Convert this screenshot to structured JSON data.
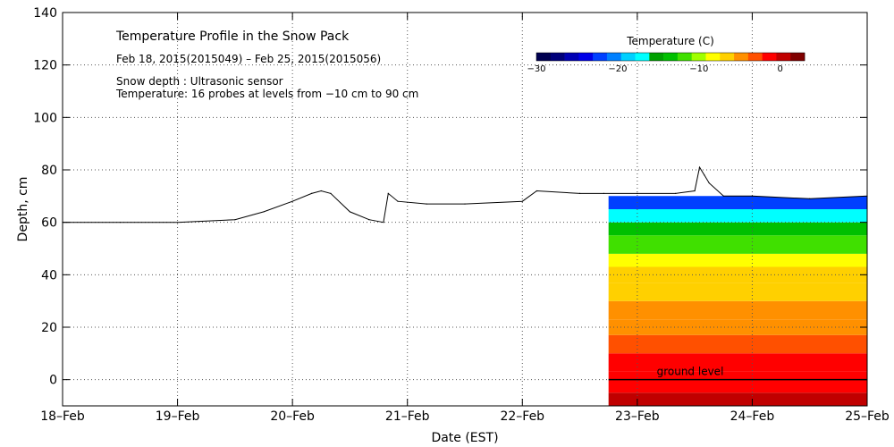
{
  "chart_data": {
    "type": "area",
    "title": "Temperature Profile in the Snow Pack",
    "subtitle": "Feb 18, 2015(2015049) – Feb 25, 2015(2015056)",
    "annotations": [
      "Snow depth : Ultrasonic sensor",
      "Temperature: 16 probes at levels from −10 cm to 90 cm"
    ],
    "xlabel": "Date (EST)",
    "ylabel": "Depth, cm",
    "xlim": [
      "2015-02-18",
      "2015-02-25"
    ],
    "ylim": [
      -10,
      140
    ],
    "x_ticks": [
      "18–Feb",
      "19–Feb",
      "20–Feb",
      "21–Feb",
      "22–Feb",
      "23–Feb",
      "24–Feb",
      "25–Feb"
    ],
    "y_ticks": [
      0,
      20,
      40,
      60,
      80,
      100,
      120,
      140
    ],
    "grid": true,
    "ground_level": {
      "label": "ground level",
      "depth": 0
    },
    "colorbar": {
      "title": "Temperature (C)",
      "range": [
        -30,
        3
      ],
      "tick_values": [
        -30,
        -20,
        -10,
        0
      ],
      "tick_labels": [
        "−30",
        "−20",
        "−10",
        "0"
      ],
      "colors": [
        "#000050",
        "#00007a",
        "#0000b4",
        "#0000e8",
        "#0040ff",
        "#0080ff",
        "#00d0ff",
        "#00ffff",
        "#00a000",
        "#00c000",
        "#40e000",
        "#a0ff00",
        "#ffff00",
        "#ffd000",
        "#ff9000",
        "#ff5000",
        "#ff0000",
        "#c00000",
        "#800000"
      ]
    },
    "series": [
      {
        "name": "Snow depth",
        "x": [
          "2015-02-18T00:00",
          "2015-02-18T12:00",
          "2015-02-19T00:00",
          "2015-02-19T12:00",
          "2015-02-19T18:00",
          "2015-02-20T00:00",
          "2015-02-20T04:00",
          "2015-02-20T06:00",
          "2015-02-20T08:00",
          "2015-02-20T12:00",
          "2015-02-20T16:00",
          "2015-02-20T19:00",
          "2015-02-20T20:00",
          "2015-02-20T22:00",
          "2015-02-21T04:00",
          "2015-02-21T12:00",
          "2015-02-22T00:00",
          "2015-02-22T03:00",
          "2015-02-22T12:00",
          "2015-02-22T17:00",
          "2015-02-23T00:00",
          "2015-02-23T08:00",
          "2015-02-23T12:00",
          "2015-02-23T13:00",
          "2015-02-23T14:00",
          "2015-02-23T15:00",
          "2015-02-23T18:00",
          "2015-02-24T00:00",
          "2015-02-24T12:00",
          "2015-02-25T00:00"
        ],
        "y": [
          60,
          60,
          60,
          61,
          64,
          68,
          71,
          72,
          71,
          64,
          61,
          60,
          71,
          68,
          67,
          67,
          68,
          72,
          71,
          71,
          71,
          71,
          72,
          81,
          78,
          75,
          70,
          70,
          69,
          70
        ]
      }
    ],
    "temperature_profile": {
      "start": "2015-02-22T18:00",
      "end": "2015-02-25T00:00",
      "layers": [
        {
          "from": -10,
          "to": -5,
          "temp_c": 1
        },
        {
          "from": -5,
          "to": 3,
          "temp_c": -1
        },
        {
          "from": 3,
          "to": 10,
          "temp_c": -2
        },
        {
          "from": 10,
          "to": 17,
          "temp_c": -3
        },
        {
          "from": 17,
          "to": 23,
          "temp_c": -4
        },
        {
          "from": 23,
          "to": 30,
          "temp_c": -5
        },
        {
          "from": 30,
          "to": 37,
          "temp_c": -6
        },
        {
          "from": 37,
          "to": 43,
          "temp_c": -7
        },
        {
          "from": 43,
          "to": 48,
          "temp_c": -9
        },
        {
          "from": 48,
          "to": 55,
          "temp_c": -11
        },
        {
          "from": 55,
          "to": 60,
          "temp_c": -14
        },
        {
          "from": 60,
          "to": 65,
          "temp_c": -17
        },
        {
          "from": 65,
          "to": 70,
          "temp_c": -22
        }
      ]
    }
  }
}
